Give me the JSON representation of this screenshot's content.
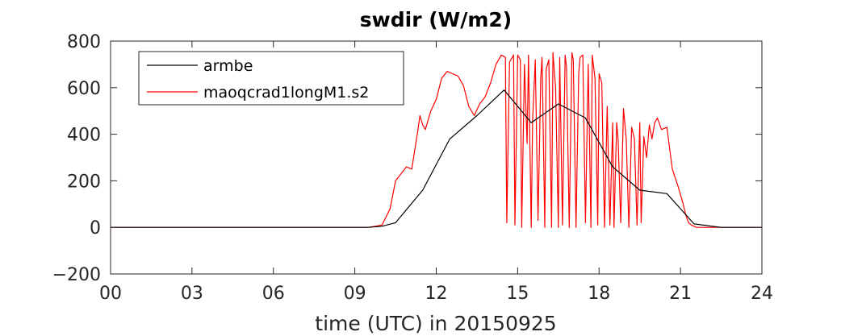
{
  "chart_data": {
    "type": "line",
    "title": "swdir  (W/m2)",
    "xlabel": "time (UTC) in 20150925",
    "ylabel": "",
    "xlim": [
      0,
      24
    ],
    "ylim": [
      -200,
      800
    ],
    "xticks": [
      0,
      3,
      6,
      9,
      12,
      15,
      18,
      21,
      24
    ],
    "xtick_labels": [
      "00",
      "03",
      "06",
      "09",
      "12",
      "15",
      "18",
      "21",
      "24"
    ],
    "yticks": [
      -200,
      0,
      200,
      400,
      600,
      800
    ],
    "ytick_labels": [
      "−200",
      "0",
      "200",
      "400",
      "600",
      "800"
    ],
    "grid": false,
    "legend_position": "top-left",
    "series": [
      {
        "name": "armbe",
        "color": "#000000",
        "x": [
          0,
          9.5,
          10,
          10.5,
          11.5,
          12.5,
          13.5,
          14.5,
          15.5,
          16.5,
          17.5,
          18.5,
          19.5,
          20.5,
          21.5,
          22.5,
          24
        ],
        "y": [
          0,
          0,
          5,
          20,
          160,
          380,
          480,
          590,
          450,
          530,
          470,
          260,
          160,
          145,
          15,
          0,
          0
        ]
      },
      {
        "name": "maoqcrad1longM1.s2",
        "color": "#ff0000",
        "x": [
          0,
          9.5,
          10.0,
          10.3,
          10.5,
          10.7,
          10.9,
          11.1,
          11.3,
          11.4,
          11.5,
          11.6,
          11.8,
          12.0,
          12.2,
          12.4,
          12.6,
          12.8,
          13.0,
          13.2,
          13.4,
          13.6,
          13.8,
          14.0,
          14.2,
          14.4,
          14.55,
          14.6,
          14.7,
          14.85,
          14.9,
          15.0,
          15.1,
          15.15,
          15.25,
          15.35,
          15.4,
          15.5,
          15.55,
          15.65,
          15.75,
          15.85,
          15.9,
          16.0,
          16.05,
          16.15,
          16.25,
          16.3,
          16.4,
          16.5,
          16.55,
          16.65,
          16.75,
          16.8,
          16.9,
          17.0,
          17.05,
          17.15,
          17.25,
          17.3,
          17.4,
          17.5,
          17.6,
          17.7,
          17.75,
          17.85,
          17.95,
          18.0,
          18.1,
          18.2,
          18.3,
          18.4,
          18.5,
          18.55,
          18.65,
          18.7,
          18.8,
          18.9,
          19.0,
          19.1,
          19.2,
          19.3,
          19.4,
          19.5,
          19.55,
          19.65,
          19.75,
          19.85,
          19.95,
          20.05,
          20.15,
          20.3,
          20.5,
          20.7,
          20.9,
          21.1,
          21.2,
          21.3,
          21.4,
          21.5,
          21.6,
          21.8,
          22.0,
          22.5,
          24
        ],
        "y": [
          0,
          0,
          10,
          80,
          200,
          230,
          260,
          250,
          400,
          480,
          440,
          420,
          500,
          550,
          640,
          670,
          660,
          650,
          610,
          520,
          480,
          530,
          560,
          620,
          700,
          740,
          730,
          20,
          710,
          740,
          10,
          740,
          720,
          0,
          700,
          360,
          740,
          0,
          460,
          720,
          30,
          640,
          730,
          0,
          680,
          720,
          0,
          750,
          600,
          0,
          730,
          10,
          740,
          690,
          0,
          750,
          720,
          0,
          660,
          730,
          740,
          20,
          700,
          0,
          740,
          640,
          10,
          660,
          620,
          0,
          520,
          10,
          450,
          0,
          450,
          380,
          20,
          510,
          380,
          0,
          430,
          380,
          10,
          450,
          20,
          390,
          300,
          440,
          380,
          450,
          470,
          420,
          430,
          250,
          180,
          100,
          50,
          20,
          10,
          5,
          0,
          0,
          0,
          0,
          0
        ]
      }
    ]
  }
}
